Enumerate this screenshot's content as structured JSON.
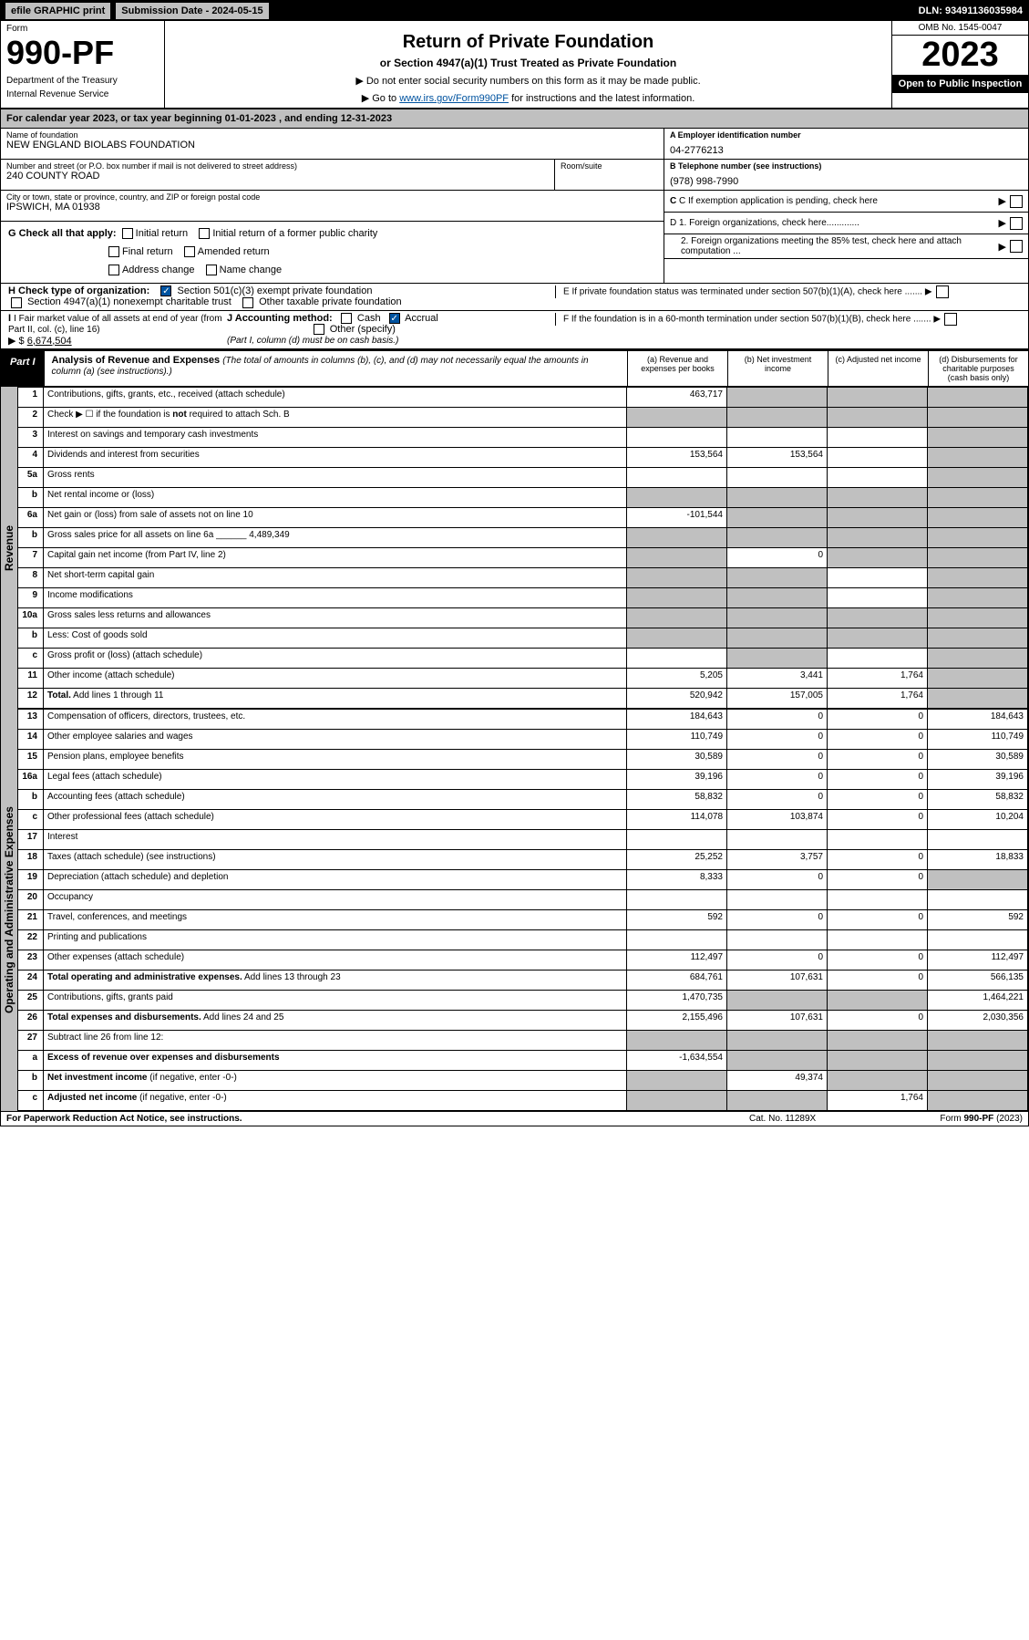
{
  "header": {
    "efile": "efile GRAPHIC print",
    "submission_label": "Submission Date - 2024-05-15",
    "dln": "DLN: 93491136035984"
  },
  "form": {
    "label": "Form",
    "number": "990-PF",
    "dept": "Department of the Treasury",
    "irs": "Internal Revenue Service",
    "title": "Return of Private Foundation",
    "subtitle": "or Section 4947(a)(1) Trust Treated as Private Foundation",
    "note1": "▶ Do not enter social security numbers on this form as it may be made public.",
    "note2_pre": "▶ Go to ",
    "note2_link": "www.irs.gov/Form990PF",
    "note2_post": " for instructions and the latest information.",
    "omb": "OMB No. 1545-0047",
    "year": "2023",
    "open": "Open to Public Inspection"
  },
  "calyear": "For calendar year 2023, or tax year beginning 01-01-2023                          , and ending 12-31-2023",
  "entity": {
    "name_label": "Name of foundation",
    "name": "NEW ENGLAND BIOLABS FOUNDATION",
    "addr_label": "Number and street (or P.O. box number if mail is not delivered to street address)",
    "addr": "240 COUNTY ROAD",
    "room_label": "Room/suite",
    "city_label": "City or town, state or province, country, and ZIP or foreign postal code",
    "city": "IPSWICH, MA  01938",
    "ein_label": "A Employer identification number",
    "ein": "04-2776213",
    "phone_label": "B Telephone number (see instructions)",
    "phone": "(978) 998-7990",
    "c_label": "C If exemption application is pending, check here",
    "d1": "D 1. Foreign organizations, check here.............",
    "d2": "2. Foreign organizations meeting the 85% test, check here and attach computation ...",
    "e": "E  If private foundation status was terminated under section 507(b)(1)(A), check here .......",
    "f": "F  If the foundation is in a 60-month termination under section 507(b)(1)(B), check here .......",
    "g_label": "G Check all that apply:",
    "g_opts": [
      "Initial return",
      "Initial return of a former public charity",
      "Final return",
      "Amended return",
      "Address change",
      "Name change"
    ],
    "h_label": "H Check type of organization:",
    "h1": "Section 501(c)(3) exempt private foundation",
    "h2": "Section 4947(a)(1) nonexempt charitable trust",
    "h3": "Other taxable private foundation",
    "i_label": "I Fair market value of all assets at end of year (from Part II, col. (c), line 16)",
    "i_val": "6,674,504",
    "j_label": "J Accounting method:",
    "j_cash": "Cash",
    "j_accrual": "Accrual",
    "j_other": "Other (specify)",
    "j_note": "(Part I, column (d) must be on cash basis.)"
  },
  "part1": {
    "tab": "Part I",
    "title": "Analysis of Revenue and Expenses",
    "subtitle": "(The total of amounts in columns (b), (c), and (d) may not necessarily equal the amounts in column (a) (see instructions).)",
    "col_a": "(a) Revenue and expenses per books",
    "col_b": "(b) Net investment income",
    "col_c": "(c) Adjusted net income",
    "col_d": "(d) Disbursements for charitable purposes (cash basis only)"
  },
  "revenue_label": "Revenue",
  "expenses_label": "Operating and Administrative Expenses",
  "rows": [
    {
      "n": "1",
      "d": "shade",
      "a": "463,717",
      "b": "shade",
      "c": "shade"
    },
    {
      "n": "2",
      "d": "shade",
      "dots": true,
      "a": "shade",
      "b": "shade",
      "c": "shade"
    },
    {
      "n": "3",
      "d": "shade",
      "a": "",
      "b": "",
      "c": ""
    },
    {
      "n": "4",
      "d": "shade",
      "dots": true,
      "a": "153,564",
      "b": "153,564",
      "c": ""
    },
    {
      "n": "5a",
      "d": "shade",
      "dots": true,
      "a": "",
      "b": "",
      "c": ""
    },
    {
      "n": "b",
      "d": "shade",
      "a": "shade",
      "b": "shade",
      "c": "shade"
    },
    {
      "n": "6a",
      "d": "shade",
      "a": "-101,544",
      "b": "shade",
      "c": "shade"
    },
    {
      "n": "b",
      "d": "shade",
      "a": "shade",
      "b": "shade",
      "c": "shade"
    },
    {
      "n": "7",
      "d": "shade",
      "dots": true,
      "a": "shade",
      "b": "0",
      "c": "shade"
    },
    {
      "n": "8",
      "d": "shade",
      "dots": true,
      "a": "shade",
      "b": "shade",
      "c": ""
    },
    {
      "n": "9",
      "d": "shade",
      "dots": true,
      "a": "shade",
      "b": "shade",
      "c": ""
    },
    {
      "n": "10a",
      "d": "shade",
      "a": "shade",
      "b": "shade",
      "c": "shade"
    },
    {
      "n": "b",
      "d": "shade",
      "dots": true,
      "a": "shade",
      "b": "shade",
      "c": "shade"
    },
    {
      "n": "c",
      "d": "shade",
      "dots": true,
      "a": "",
      "b": "shade",
      "c": ""
    },
    {
      "n": "11",
      "d": "shade",
      "dots": true,
      "a": "5,205",
      "b": "3,441",
      "c": "1,764"
    },
    {
      "n": "12",
      "d": "shade",
      "dots": true,
      "bold": true,
      "a": "520,942",
      "b": "157,005",
      "c": "1,764"
    }
  ],
  "exp_rows": [
    {
      "n": "13",
      "d": "184,643",
      "a": "184,643",
      "b": "0",
      "c": "0"
    },
    {
      "n": "14",
      "d": "110,749",
      "dots": true,
      "a": "110,749",
      "b": "0",
      "c": "0"
    },
    {
      "n": "15",
      "d": "30,589",
      "dots": true,
      "a": "30,589",
      "b": "0",
      "c": "0"
    },
    {
      "n": "16a",
      "d": "39,196",
      "dots": true,
      "a": "39,196",
      "b": "0",
      "c": "0"
    },
    {
      "n": "b",
      "d": "58,832",
      "dots": true,
      "a": "58,832",
      "b": "0",
      "c": "0"
    },
    {
      "n": "c",
      "d": "10,204",
      "dots": true,
      "a": "114,078",
      "b": "103,874",
      "c": "0"
    },
    {
      "n": "17",
      "d": "",
      "dots": true,
      "a": "",
      "b": "",
      "c": ""
    },
    {
      "n": "18",
      "d": "18,833",
      "dots": true,
      "a": "25,252",
      "b": "3,757",
      "c": "0"
    },
    {
      "n": "19",
      "d": "shade",
      "dots": true,
      "a": "8,333",
      "b": "0",
      "c": "0"
    },
    {
      "n": "20",
      "d": "",
      "dots": true,
      "a": "",
      "b": "",
      "c": ""
    },
    {
      "n": "21",
      "d": "592",
      "dots": true,
      "a": "592",
      "b": "0",
      "c": "0"
    },
    {
      "n": "22",
      "d": "",
      "dots": true,
      "a": "",
      "b": "",
      "c": ""
    },
    {
      "n": "23",
      "d": "112,497",
      "dots": true,
      "a": "112,497",
      "b": "0",
      "c": "0"
    },
    {
      "n": "24",
      "d": "566,135",
      "dots": true,
      "bold": true,
      "a": "684,761",
      "b": "107,631",
      "c": "0"
    },
    {
      "n": "25",
      "d": "1,464,221",
      "dots": true,
      "a": "1,470,735",
      "b": "shade",
      "c": "shade"
    },
    {
      "n": "26",
      "d": "2,030,356",
      "bold": true,
      "a": "2,155,496",
      "b": "107,631",
      "c": "0"
    },
    {
      "n": "27",
      "d": "shade",
      "a": "shade",
      "b": "shade",
      "c": "shade"
    },
    {
      "n": "a",
      "d": "shade",
      "bold": true,
      "a": "-1,634,554",
      "b": "shade",
      "c": "shade"
    },
    {
      "n": "b",
      "d": "shade",
      "bold": true,
      "a": "shade",
      "b": "49,374",
      "c": "shade"
    },
    {
      "n": "c",
      "d": "shade",
      "dots": true,
      "bold": true,
      "a": "shade",
      "b": "shade",
      "c": "1,764"
    }
  ],
  "footer": {
    "left": "For Paperwork Reduction Act Notice, see instructions.",
    "mid": "Cat. No. 11289X",
    "right": "Form 990-PF (2023)"
  }
}
